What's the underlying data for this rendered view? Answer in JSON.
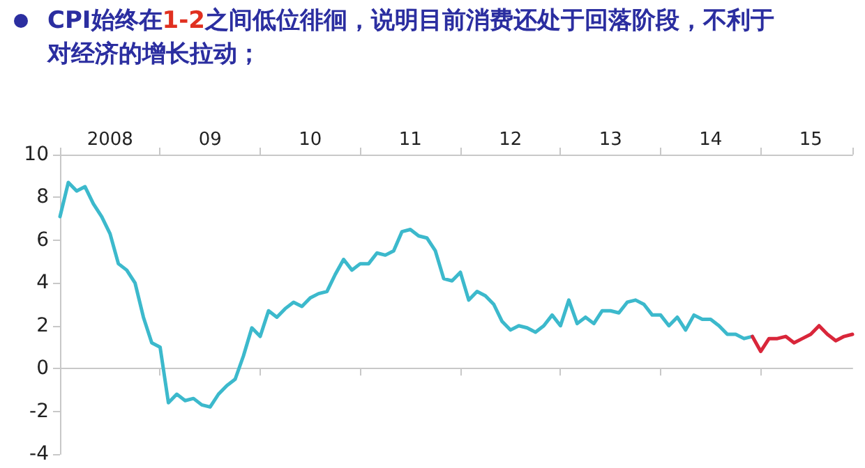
{
  "chart_data": {
    "type": "line",
    "title": "CPI始终在1-2之间低位徘徊，说明目前消费还处于回落阶段，不利于对经济的增长拉动；",
    "categories": [
      null,
      null,
      null,
      null,
      null,
      null,
      "2008",
      null,
      null,
      null,
      null,
      null,
      null,
      null,
      null,
      null,
      null,
      null,
      "09",
      null,
      null,
      null,
      null,
      null,
      null,
      null,
      null,
      null,
      null,
      null,
      "10",
      null,
      null,
      null,
      null,
      null,
      null,
      null,
      null,
      null,
      null,
      null,
      "11",
      null,
      null,
      null,
      null,
      null,
      null,
      null,
      null,
      null,
      null,
      null,
      "12",
      null,
      null,
      null,
      null,
      null,
      null,
      null,
      null,
      null,
      null,
      null,
      "13",
      null,
      null,
      null,
      null,
      null,
      null,
      null,
      null,
      null,
      null,
      null,
      "14",
      null,
      null,
      null,
      null,
      null,
      null,
      null,
      null,
      null,
      null,
      null,
      "15",
      null,
      null,
      null,
      null,
      null
    ],
    "series": [
      {
        "color": "#3cb9cc",
        "values": [
          7.1,
          8.7,
          8.3,
          8.5,
          7.7,
          7.1,
          6.3,
          4.9,
          4.6,
          4.0,
          2.4,
          1.2,
          1.0,
          -1.6,
          -1.2,
          -1.5,
          -1.4,
          -1.7,
          -1.8,
          -1.2,
          -0.8,
          -0.5,
          0.6,
          1.9,
          1.5,
          2.7,
          2.4,
          2.8,
          3.1,
          2.9,
          3.3,
          3.5,
          3.6,
          4.4,
          5.1,
          4.6,
          4.9,
          4.9,
          5.4,
          5.3,
          5.5,
          6.4,
          6.5,
          6.2,
          6.1,
          5.5,
          4.2,
          4.1,
          4.5,
          3.2,
          3.6,
          3.4,
          3.0,
          2.2,
          1.8,
          2.0,
          1.9,
          1.7,
          2.0,
          2.5,
          2.0,
          3.2,
          2.1,
          2.4,
          2.1,
          2.7,
          2.7,
          2.6,
          3.1,
          3.2,
          3.0,
          2.5,
          2.5,
          2.0,
          2.4,
          1.8,
          2.5,
          2.3,
          2.3,
          2.0,
          1.6,
          1.6,
          1.4,
          1.5,
          null,
          null,
          null,
          null,
          null,
          null,
          null,
          null,
          null,
          null,
          null,
          null
        ]
      },
      {
        "color": "#d9263a",
        "values": [
          null,
          null,
          null,
          null,
          null,
          null,
          null,
          null,
          null,
          null,
          null,
          null,
          null,
          null,
          null,
          null,
          null,
          null,
          null,
          null,
          null,
          null,
          null,
          null,
          null,
          null,
          null,
          null,
          null,
          null,
          null,
          null,
          null,
          null,
          null,
          null,
          null,
          null,
          null,
          null,
          null,
          null,
          null,
          null,
          null,
          null,
          null,
          null,
          null,
          null,
          null,
          null,
          null,
          null,
          null,
          null,
          null,
          null,
          null,
          null,
          null,
          null,
          null,
          null,
          null,
          null,
          null,
          null,
          null,
          null,
          null,
          null,
          null,
          null,
          null,
          null,
          null,
          null,
          null,
          null,
          null,
          null,
          null,
          1.5,
          0.8,
          1.4,
          1.4,
          1.5,
          1.2,
          1.4,
          1.6,
          2.0,
          1.6,
          1.3,
          1.5,
          1.6
        ]
      }
    ],
    "ylim": [
      -4,
      10
    ],
    "yticks": [
      -4,
      -2,
      0,
      2,
      4,
      6,
      8,
      10
    ],
    "marker": "none",
    "line_style": "solid"
  }
}
